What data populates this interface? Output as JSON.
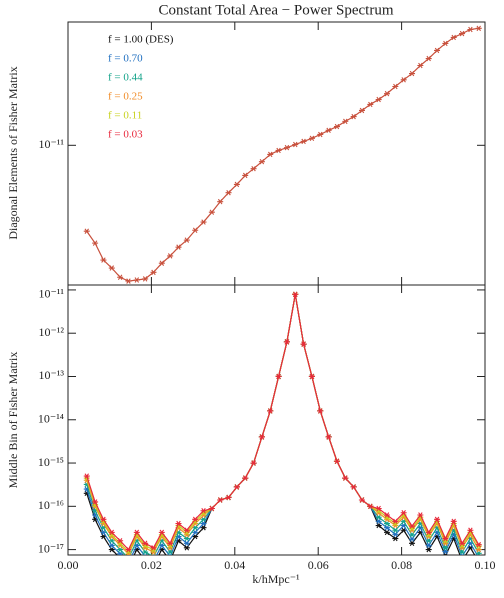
{
  "chart_data": [
    {
      "type": "line",
      "title": "Constant Total Area − Power Spectrum",
      "ylabel": "Diagonal Elements of Fisher Matrix",
      "log_scale": true,
      "xlim": [
        0,
        0.1
      ],
      "ylim": [
        7e-12,
        1.37e-11
      ],
      "yticks": [
        {
          "value": 1e-11,
          "label": "10⁻¹¹"
        }
      ],
      "x": [
        0.0045,
        0.0065,
        0.0085,
        0.0105,
        0.0125,
        0.0145,
        0.0165,
        0.0185,
        0.0205,
        0.0225,
        0.0245,
        0.0265,
        0.0285,
        0.0305,
        0.0325,
        0.0345,
        0.0365,
        0.0385,
        0.0405,
        0.0425,
        0.0445,
        0.0465,
        0.0485,
        0.0505,
        0.0525,
        0.0545,
        0.0565,
        0.0585,
        0.0605,
        0.0625,
        0.0645,
        0.0665,
        0.0685,
        0.0705,
        0.0725,
        0.0745,
        0.0765,
        0.0785,
        0.0805,
        0.0825,
        0.0845,
        0.0865,
        0.0885,
        0.0905,
        0.0925,
        0.0945,
        0.0965,
        0.0985
      ],
      "series": [
        {
          "color": "#c8503c",
          "values": [
            8.03e-12,
            7.79e-12,
            7.46e-12,
            7.31e-12,
            7.14e-12,
            7.07e-12,
            7.09e-12,
            7.11e-12,
            7.23e-12,
            7.4e-12,
            7.54e-12,
            7.71e-12,
            7.85e-12,
            8.05e-12,
            8.22e-12,
            8.43e-12,
            8.66e-12,
            8.86e-12,
            9.05e-12,
            9.26e-12,
            9.42e-12,
            9.59e-12,
            9.77e-12,
            9.87e-12,
            9.94e-12,
            1.002e-11,
            1.01e-11,
            1.018e-11,
            1.028e-11,
            1.039e-11,
            1.049e-11,
            1.063e-11,
            1.076e-11,
            1.093e-11,
            1.11e-11,
            1.124e-11,
            1.141e-11,
            1.162e-11,
            1.182e-11,
            1.201e-11,
            1.226e-11,
            1.248e-11,
            1.274e-11,
            1.297e-11,
            1.317e-11,
            1.33e-11,
            1.344e-11,
            1.348e-11
          ]
        }
      ]
    },
    {
      "type": "line",
      "ylabel": "Middle Bin of Fisher Matrix",
      "xlabel": "k/hMpc⁻¹",
      "log_scale": true,
      "legend": "upper left",
      "xlim": [
        0,
        0.1
      ],
      "ylim": [
        7.5e-18,
        1.3e-11
      ],
      "xticks": [
        {
          "value": 0,
          "label": "0.00"
        },
        0.02,
        0.04,
        0.06,
        0.08,
        {
          "value": 0.1,
          "label": "0.10"
        }
      ],
      "yticks": [
        {
          "value": 1e-17,
          "label": "10⁻¹⁷"
        },
        {
          "value": 1e-16,
          "label": "10⁻¹⁶"
        },
        {
          "value": 1e-15,
          "label": "10⁻¹⁵"
        },
        {
          "value": 1e-14,
          "label": "10⁻¹⁴"
        },
        {
          "value": 1e-13,
          "label": "10⁻¹³"
        },
        {
          "value": 1e-12,
          "label": "10⁻¹²"
        },
        {
          "value": 1e-11,
          "label": "10⁻¹¹"
        }
      ],
      "x": [
        0.0045,
        0.0065,
        0.0085,
        0.0105,
        0.0125,
        0.0145,
        0.0165,
        0.0185,
        0.0205,
        0.0225,
        0.0245,
        0.0265,
        0.0285,
        0.0305,
        0.0325,
        0.0345,
        0.0365,
        0.0385,
        0.0405,
        0.0425,
        0.0445,
        0.0465,
        0.0485,
        0.0505,
        0.0525,
        0.0545,
        0.0565,
        0.0585,
        0.0605,
        0.0625,
        0.0645,
        0.0665,
        0.0685,
        0.0705,
        0.0725,
        0.0745,
        0.0765,
        0.0785,
        0.0805,
        0.0825,
        0.0845,
        0.0865,
        0.0885,
        0.0905,
        0.0925,
        0.0945,
        0.0965,
        0.0985
      ],
      "series": [
        {
          "name": "f = 1.00 (DES)",
          "color": "#111111",
          "values": [
            2e-16,
            5e-17,
            2e-17,
            1e-17,
            6.4e-18,
            4e-18,
            1e-17,
            5.6e-18,
            4.4e-18,
            1e-17,
            5.6e-18,
            1.6e-17,
            1.1e-17,
            2e-17,
            3.2e-17,
            8.9e-17,
            1.4e-16,
            1.6e-16,
            2.8e-16,
            4.5e-16,
            1e-15,
            4e-15,
            1.6e-14,
            1e-13,
            6.3e-13,
            7.9e-12,
            5.6e-13,
            1e-13,
            1.6e-14,
            4e-15,
            1.1e-15,
            4.5e-16,
            2.8e-16,
            1.4e-16,
            1e-16,
            3.6e-17,
            2.5e-17,
            1.8e-17,
            2.8e-17,
            1.4e-17,
            2.5e-17,
            1e-17,
            2e-17,
            7.2e-18,
            1.8e-17,
            5.6e-18,
            1.1e-17,
            5.2e-18
          ]
        },
        {
          "name": "f = 0.70",
          "color": "#1f6fc0",
          "values": [
            2.5e-16,
            6.3e-17,
            2.5e-17,
            1.25e-17,
            8e-18,
            5e-18,
            1.25e-17,
            7e-18,
            5.5e-18,
            1.25e-17,
            7e-18,
            2e-17,
            1.4e-17,
            2.5e-17,
            4e-17,
            8.9e-17,
            1.4e-16,
            1.6e-16,
            2.8e-16,
            4.5e-16,
            1e-15,
            4e-15,
            1.6e-14,
            1e-13,
            6.3e-13,
            7.9e-12,
            5.6e-13,
            1e-13,
            1.6e-14,
            4e-15,
            1.1e-15,
            4.5e-16,
            2.8e-16,
            1.4e-16,
            1e-16,
            4.5e-17,
            3.2e-17,
            2.25e-17,
            3.6e-17,
            1.75e-17,
            3.2e-17,
            1.25e-17,
            2.5e-17,
            9e-18,
            2.25e-17,
            7e-18,
            1.4e-17,
            6.5e-18
          ]
        },
        {
          "name": "f = 0.44",
          "color": "#14a38a",
          "values": [
            3.2e-16,
            7.9e-17,
            3.2e-17,
            1.6e-17,
            1e-17,
            6.3e-18,
            1.6e-17,
            8.8e-18,
            6.9e-18,
            1.6e-17,
            8.8e-18,
            2.5e-17,
            1.8e-17,
            3.2e-17,
            5e-17,
            8.9e-17,
            1.4e-16,
            1.6e-16,
            2.8e-16,
            4.5e-16,
            1e-15,
            4e-15,
            1.6e-14,
            1e-13,
            6.3e-13,
            7.9e-12,
            5.6e-13,
            1e-13,
            1.6e-14,
            4e-15,
            1.1e-15,
            4.5e-16,
            2.8e-16,
            1.4e-16,
            1e-16,
            5.6e-17,
            4e-17,
            2.8e-17,
            4.5e-17,
            2.2e-17,
            4e-17,
            1.6e-17,
            3.2e-17,
            1.1e-17,
            2.8e-17,
            8.8e-18,
            1.8e-17,
            8.2e-18
          ]
        },
        {
          "name": "f = 0.25",
          "color": "#f08c28",
          "values": [
            4e-16,
            1e-16,
            4e-17,
            2e-17,
            1.26e-17,
            7.9e-18,
            2e-17,
            1.1e-17,
            8.7e-18,
            2e-17,
            1.1e-17,
            3.2e-17,
            2.2e-17,
            4e-17,
            6.2e-17,
            8.9e-17,
            1.4e-16,
            1.6e-16,
            2.8e-16,
            4.5e-16,
            1e-15,
            4e-15,
            1.6e-14,
            1e-13,
            6.3e-13,
            7.9e-12,
            5.6e-13,
            1e-13,
            1.6e-14,
            4e-15,
            1.1e-15,
            4.5e-16,
            2.8e-16,
            1.4e-16,
            1e-16,
            7e-17,
            5e-17,
            3.6e-17,
            5.6e-17,
            2.8e-17,
            5e-17,
            2e-17,
            4e-17,
            1.4e-17,
            3.6e-17,
            1.1e-17,
            2.2e-17,
            1e-17
          ]
        },
        {
          "name": "f = 0.11",
          "color": "#c8d21e",
          "values": [
            4.5e-16,
            1.1e-16,
            4.5e-17,
            2.2e-17,
            1.4e-17,
            8.9e-18,
            2.2e-17,
            1.25e-17,
            9.8e-18,
            2.2e-17,
            1.25e-17,
            3.6e-17,
            2.5e-17,
            4.5e-17,
            7e-17,
            8.9e-17,
            1.4e-16,
            1.6e-16,
            2.8e-16,
            4.5e-16,
            1e-15,
            4e-15,
            1.6e-14,
            1e-13,
            6.3e-13,
            7.9e-12,
            5.6e-13,
            1e-13,
            1.6e-14,
            4e-15,
            1.1e-15,
            4.5e-16,
            2.8e-16,
            1.4e-16,
            1e-16,
            7.9e-17,
            5.6e-17,
            4e-17,
            6.3e-17,
            3.1e-17,
            5.6e-17,
            2.2e-17,
            4.5e-17,
            1.6e-17,
            4e-17,
            1.25e-17,
            2.5e-17,
            1.2e-17
          ]
        },
        {
          "name": "f = 0.03",
          "color": "#e8283c",
          "values": [
            5e-16,
            1.26e-16,
            5e-17,
            2.5e-17,
            1.6e-17,
            1e-17,
            2.5e-17,
            1.4e-17,
            1.1e-17,
            2.5e-17,
            1.4e-17,
            4e-17,
            2.8e-17,
            5e-17,
            7.9e-17,
            8.9e-17,
            1.4e-16,
            1.6e-16,
            2.8e-16,
            4.5e-16,
            1e-15,
            4e-15,
            1.6e-14,
            1e-13,
            6.3e-13,
            7.9e-12,
            5.6e-13,
            1e-13,
            1.6e-14,
            4e-15,
            1.1e-15,
            4.5e-16,
            2.8e-16,
            1.4e-16,
            1e-16,
            8.9e-17,
            6.3e-17,
            4.5e-17,
            7.1e-17,
            3.5e-17,
            6.3e-17,
            2.5e-17,
            5e-17,
            1.8e-17,
            4.5e-17,
            1.4e-17,
            2.8e-17,
            1.3e-17
          ]
        }
      ]
    }
  ]
}
